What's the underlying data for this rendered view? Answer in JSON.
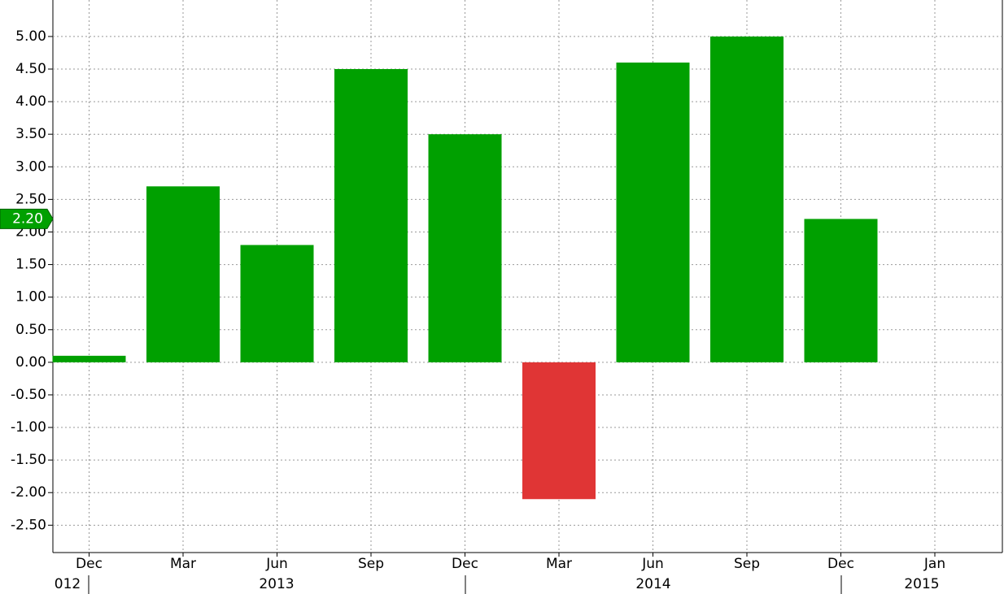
{
  "chart_data": {
    "type": "bar",
    "categories": [
      "Dec",
      "Mar",
      "Jun",
      "Sep",
      "Dec",
      "Mar",
      "Jun",
      "Sep",
      "Dec",
      "Jan"
    ],
    "values": [
      0.1,
      2.7,
      1.8,
      4.5,
      3.5,
      -2.1,
      4.6,
      5.0,
      2.2,
      null
    ],
    "colors": [
      "#00a000",
      "#00a000",
      "#00a000",
      "#00a000",
      "#00a000",
      "#e03535",
      "#00a000",
      "#00a000",
      "#00a000",
      "#00a000"
    ],
    "year_labels": [
      "012",
      "2013",
      "2014",
      "2015"
    ],
    "last_value_label": "2.20",
    "ylim": [
      -2.92,
      5.56
    ],
    "yticks": [
      {
        "value": -2.5,
        "label": "-2.50"
      },
      {
        "value": -2,
        "label": "-2.00"
      },
      {
        "value": -1.5,
        "label": "-1.50"
      },
      {
        "value": -1,
        "label": "-1.00"
      },
      {
        "value": -0.5,
        "label": "-0.50"
      },
      {
        "value": 0,
        "label": "0.00"
      },
      {
        "value": 0.5,
        "label": "0.50"
      },
      {
        "value": 1,
        "label": "1.00"
      },
      {
        "value": 1.5,
        "label": "1.50"
      },
      {
        "value": 2,
        "label": "2.00"
      },
      {
        "value": 2.5,
        "label": "2.50"
      },
      {
        "value": 3,
        "label": "3.00"
      },
      {
        "value": 3.5,
        "label": "3.50"
      },
      {
        "value": 4,
        "label": "4.00"
      },
      {
        "value": 4.5,
        "label": "4.50"
      },
      {
        "value": 5,
        "label": "5.00"
      }
    ],
    "grid": true
  }
}
